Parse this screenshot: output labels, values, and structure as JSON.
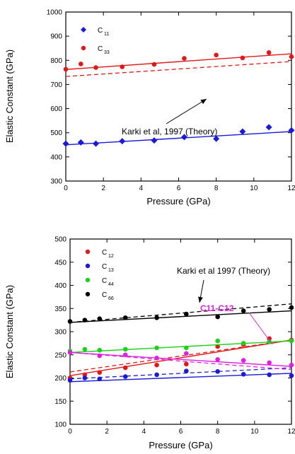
{
  "chart_data": [
    {
      "type": "scatter",
      "xlabel": "Pressure (GPa)",
      "ylabel": "Elastic Constant (GPa)",
      "xlim": [
        0,
        12
      ],
      "ylim": [
        300,
        1000
      ],
      "xticks": [
        0,
        2,
        4,
        6,
        8,
        10,
        12
      ],
      "yticks": [
        300,
        400,
        500,
        600,
        700,
        800,
        900,
        1000
      ],
      "grid": false,
      "legend": "top-left",
      "annotation": "Karki et al,  1997 (Theory)",
      "series": [
        {
          "name": "C",
          "sub": "11",
          "color": "#1a1ad8",
          "marker": "diamond",
          "x": [
            0,
            0.8,
            1.6,
            3,
            4.7,
            6.3,
            8,
            9.4,
            10.8,
            12
          ],
          "y": [
            455,
            460,
            455,
            465,
            468,
            482,
            475,
            505,
            523,
            510
          ],
          "fit": [
            [
              0,
              450
            ],
            [
              12,
              505
            ]
          ],
          "theory": null
        },
        {
          "name": "C",
          "sub": "33",
          "color": "#e01818",
          "marker": "circle",
          "x": [
            0,
            0.8,
            1.6,
            3,
            4.7,
            6.3,
            8,
            9.4,
            10.8,
            12
          ],
          "y": [
            763,
            785,
            770,
            773,
            783,
            808,
            822,
            810,
            832,
            815
          ],
          "fit": [
            [
              0,
              762
            ],
            [
              12,
              827
            ]
          ],
          "theory": [
            [
              0,
              733
            ],
            [
              12,
              795
            ]
          ]
        }
      ]
    },
    {
      "type": "scatter",
      "xlabel": "Pressure (GPa)",
      "ylabel": "Elastic Constant (GPa)",
      "xlim": [
        0,
        12
      ],
      "ylim": [
        100,
        500
      ],
      "xticks": [
        0,
        2,
        4,
        6,
        8,
        10,
        12
      ],
      "yticks": [
        100,
        150,
        200,
        250,
        300,
        350,
        400,
        450,
        500
      ],
      "grid": false,
      "legend": "top-left",
      "annotation": "Karki et al 1997 (Theory)",
      "annotation2": "C11-C12",
      "series": [
        {
          "name": "C",
          "sub": "12",
          "color": "#e01818",
          "marker": "circle",
          "x": [
            0,
            0.8,
            1.6,
            3,
            4.7,
            6.3,
            8,
            9.4,
            10.8,
            12
          ],
          "y": [
            200,
            207,
            212,
            222,
            228,
            230,
            268,
            272,
            285,
            282
          ],
          "fit": [
            [
              0,
              205
            ],
            [
              12,
              282
            ]
          ],
          "theory": [
            [
              0,
              213
            ],
            [
              12,
              282
            ]
          ]
        },
        {
          "name": "C",
          "sub": "13",
          "color": "#1a1ad8",
          "marker": "circle",
          "x": [
            0,
            0.8,
            1.6,
            3,
            4.7,
            6.3,
            8,
            9.4,
            10.8,
            12
          ],
          "y": [
            195,
            200,
            198,
            203,
            207,
            215,
            214,
            208,
            207,
            205
          ],
          "fit": [
            [
              0,
              192
            ],
            [
              12,
              210
            ]
          ],
          "theory": [
            [
              0,
              198
            ],
            [
              12,
              222
            ]
          ]
        },
        {
          "name": "C",
          "sub": "44",
          "color": "#1ad21a",
          "marker": "circle",
          "x": [
            0,
            0.8,
            1.6,
            3,
            4.7,
            6.3,
            8,
            9.4,
            10.8,
            12
          ],
          "y": [
            258,
            262,
            260,
            262,
            265,
            265,
            280,
            275,
            278,
            280
          ],
          "fit": [
            [
              0,
              255
            ],
            [
              12,
              280
            ]
          ],
          "theory": null
        },
        {
          "name": "C",
          "sub": "66",
          "color": "#000000",
          "marker": "circle",
          "x": [
            0,
            0.8,
            1.6,
            3,
            4.7,
            6.3,
            8,
            9.4,
            10.8,
            12
          ],
          "y": [
            322,
            325,
            328,
            330,
            330,
            338,
            332,
            345,
            348,
            352
          ],
          "fit": [
            [
              0,
              320
            ],
            [
              12,
              345
            ]
          ],
          "theory": [
            [
              0,
              320
            ],
            [
              12,
              360
            ]
          ]
        },
        {
          "name": "C11-C12",
          "sub": "",
          "color": "#e020e0",
          "marker": "circle",
          "x": [
            0,
            1.6,
            3,
            4.7,
            6.3,
            8,
            9.4,
            10.8,
            12
          ],
          "y": [
            255,
            248,
            250,
            243,
            253,
            240,
            238,
            233,
            228
          ],
          "fit": [
            [
              0,
              255
            ],
            [
              12,
              225
            ]
          ],
          "theory": [
            [
              0,
              255
            ],
            [
              12,
              218
            ]
          ]
        }
      ]
    }
  ]
}
